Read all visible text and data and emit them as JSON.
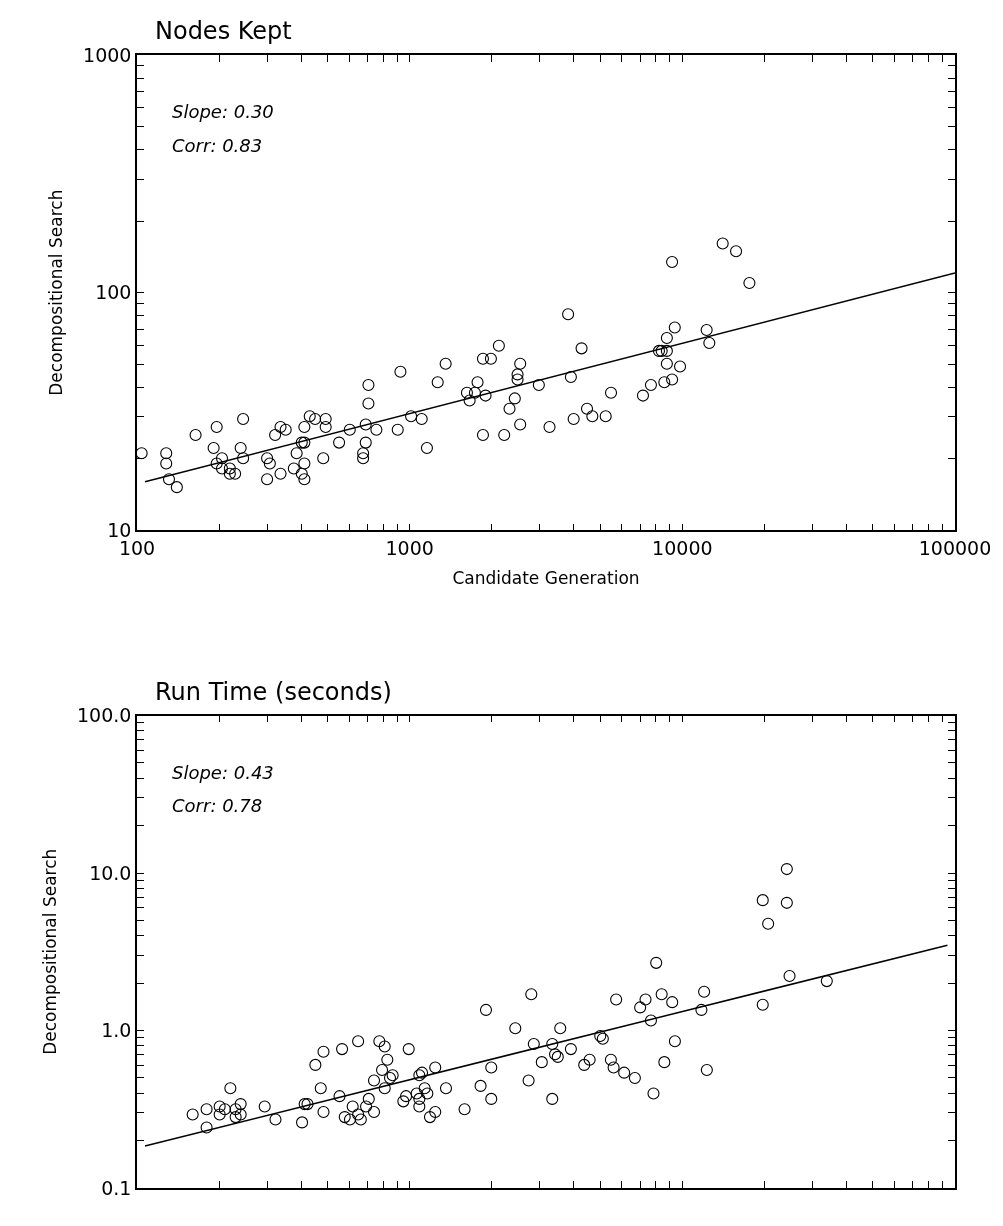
{
  "chart_data": [
    {
      "type": "scatter",
      "title": "Nodes Kept",
      "xlabel": "Candidate Generation",
      "ylabel": "Decompositional Search",
      "log": "xy",
      "marker": "circle",
      "annotations": [
        "Slope: 0.30",
        "Corr: 0.83"
      ],
      "xlim": [
        100,
        100000
      ],
      "ylim": [
        10,
        1000
      ],
      "xticks": [
        100,
        {
          "value": 200,
          "label": null
        },
        {
          "value": 300,
          "label": null
        },
        {
          "value": 400,
          "label": null
        },
        {
          "value": 500,
          "label": null
        },
        {
          "value": 600,
          "label": null
        },
        {
          "value": 700,
          "label": null
        },
        {
          "value": 800,
          "label": null
        },
        {
          "value": 900,
          "label": null
        },
        1000,
        {
          "value": 2000,
          "label": null
        },
        {
          "value": 3000,
          "label": null
        },
        {
          "value": 4000,
          "label": null
        },
        {
          "value": 5000,
          "label": null
        },
        {
          "value": 6000,
          "label": null
        },
        {
          "value": 7000,
          "label": null
        },
        {
          "value": 8000,
          "label": null
        },
        {
          "value": 9000,
          "label": null
        },
        10000,
        {
          "value": 20000,
          "label": null
        },
        {
          "value": 30000,
          "label": null
        },
        {
          "value": 40000,
          "label": null
        },
        {
          "value": 50000,
          "label": null
        },
        {
          "value": 60000,
          "label": null
        },
        {
          "value": 70000,
          "label": null
        },
        {
          "value": 80000,
          "label": null
        },
        {
          "value": 90000,
          "label": null
        },
        100000
      ],
      "yticks": [
        10,
        {
          "value": 20,
          "label": null
        },
        {
          "value": 30,
          "label": null
        },
        {
          "value": 40,
          "label": null
        },
        {
          "value": 50,
          "label": null
        },
        {
          "value": 60,
          "label": null
        },
        {
          "value": 70,
          "label": null
        },
        {
          "value": 80,
          "label": null
        },
        {
          "value": 90,
          "label": null
        },
        100,
        {
          "value": 200,
          "label": null
        },
        {
          "value": 300,
          "label": null
        },
        {
          "value": 400,
          "label": null
        },
        {
          "value": 500,
          "label": null
        },
        {
          "value": 600,
          "label": null
        },
        {
          "value": 700,
          "label": null
        },
        {
          "value": 800,
          "label": null
        },
        {
          "value": 900,
          "label": null
        },
        1000
      ],
      "series": [
        {
          "color": "#000000",
          "x": [
            104,
            128,
            128,
            131,
            140,
            164,
            196,
            191,
            196,
            205,
            205,
            219,
            219,
            229,
            240,
            245,
            245,
            300,
            307,
            300,
            321,
            336,
            351,
            336,
            376,
            385,
            402,
            411,
            411,
            430,
            450,
            411,
            402,
            411,
            482,
            492,
            492,
            551,
            603,
            675,
            675,
            690,
            690,
            706,
            706,
            755,
            904,
            925,
            1012,
            1107,
            1157,
            1267,
            1355,
            1622,
            1659,
            1735,
            1774,
            1857,
            1857,
            1898,
            1986,
            2124,
            2222,
            2324,
            2430,
            2487,
            2487,
            2543,
            2543,
            2977,
            3258,
            3811,
            3902,
            3994,
            4270,
            4471,
            4677,
            5235,
            5476,
            7172,
            7671,
            8209,
            8398,
            8776,
            8590,
            8776,
            8776,
            9170,
            9170,
            9381,
            9808,
            12280,
            12560,
            14060,
            15740,
            17620
          ],
          "values": [
            21.1,
            21.1,
            19.1,
            16.4,
            15.2,
            25.2,
            27.2,
            22.2,
            19.1,
            20.1,
            18.2,
            18.2,
            17.3,
            17.3,
            22.2,
            20.1,
            29.4,
            20.1,
            19.1,
            16.4,
            25.2,
            27.2,
            26.5,
            17.3,
            18.2,
            21.1,
            23.4,
            23.4,
            27.2,
            30.2,
            29.4,
            19.1,
            17.3,
            16.4,
            20.1,
            29.4,
            27.2,
            23.4,
            26.5,
            21.1,
            20.1,
            23.4,
            27.9,
            34.2,
            40.9,
            26.5,
            26.5,
            46.5,
            30.2,
            29.4,
            22.2,
            42.0,
            50.2,
            37.9,
            35.2,
            37.9,
            42.0,
            52.7,
            25.2,
            36.9,
            52.7,
            59.8,
            25.2,
            32.5,
            35.9,
            45.3,
            43.1,
            50.2,
            27.9,
            40.9,
            27.2,
            81.1,
            44.2,
            29.4,
            58.3,
            32.5,
            30.2,
            30.2,
            37.9,
            36.9,
            40.9,
            56.9,
            56.9,
            56.9,
            42.0,
            64.5,
            50.2,
            134.6,
            43.1,
            71.4,
            48.9,
            69.7,
            61.4,
            161.0,
            149.3,
            109.9
          ]
        },
        {
          "type": "line",
          "marker": "none",
          "color": "#000000",
          "x": [
            107,
            100000
          ],
          "values": [
            16.0,
            121
          ]
        }
      ]
    },
    {
      "type": "scatter",
      "title": "Run Time (seconds)",
      "ylabel": "Decompositional Search",
      "log": "xy",
      "marker": "circle",
      "tick_labels": "y",
      "annotations": [
        "Slope: 0.43",
        "Corr: 0.78"
      ],
      "xlim": [
        100,
        100000
      ],
      "ylim": [
        0.1,
        100
      ],
      "xticks": [
        100,
        {
          "value": 200,
          "label": null
        },
        {
          "value": 300,
          "label": null
        },
        {
          "value": 400,
          "label": null
        },
        {
          "value": 500,
          "label": null
        },
        {
          "value": 600,
          "label": null
        },
        {
          "value": 700,
          "label": null
        },
        {
          "value": 800,
          "label": null
        },
        {
          "value": 900,
          "label": null
        },
        1000,
        {
          "value": 2000,
          "label": null
        },
        {
          "value": 3000,
          "label": null
        },
        {
          "value": 4000,
          "label": null
        },
        {
          "value": 5000,
          "label": null
        },
        {
          "value": 6000,
          "label": null
        },
        {
          "value": 7000,
          "label": null
        },
        {
          "value": 8000,
          "label": null
        },
        {
          "value": 9000,
          "label": null
        },
        10000,
        {
          "value": 20000,
          "label": null
        },
        {
          "value": 30000,
          "label": null
        },
        {
          "value": 40000,
          "label": null
        },
        {
          "value": 50000,
          "label": null
        },
        {
          "value": 60000,
          "label": null
        },
        {
          "value": 70000,
          "label": null
        },
        {
          "value": 80000,
          "label": null
        },
        {
          "value": 90000,
          "label": null
        },
        100000
      ],
      "yticks": [
        0.1,
        {
          "value": 0.2,
          "label": null
        },
        {
          "value": 0.3,
          "label": null
        },
        {
          "value": 0.4,
          "label": null
        },
        {
          "value": 0.5,
          "label": null
        },
        {
          "value": 0.6,
          "label": null
        },
        {
          "value": 0.7,
          "label": null
        },
        {
          "value": 0.8,
          "label": null
        },
        {
          "value": 0.9,
          "label": null
        },
        {
          "value": 1,
          "label": "1.0"
        },
        {
          "value": 2,
          "label": null
        },
        {
          "value": 3,
          "label": null
        },
        {
          "value": 4,
          "label": null
        },
        {
          "value": 5,
          "label": null
        },
        {
          "value": 6,
          "label": null
        },
        {
          "value": 7,
          "label": null
        },
        {
          "value": 8,
          "label": null
        },
        {
          "value": 9,
          "label": null
        },
        {
          "value": 10,
          "label": "10.0"
        },
        {
          "value": 20,
          "label": null
        },
        {
          "value": 30,
          "label": null
        },
        {
          "value": 40,
          "label": null
        },
        {
          "value": 50,
          "label": null
        },
        {
          "value": 60,
          "label": null
        },
        {
          "value": 70,
          "label": null
        },
        {
          "value": 80,
          "label": null
        },
        {
          "value": 90,
          "label": null
        },
        {
          "value": 100,
          "label": "100.0"
        }
      ],
      "series": [
        {
          "color": "#000000",
          "x": [
            160,
            180,
            180,
            201,
            201,
            210,
            220,
            230,
            230,
            240,
            240,
            294,
            322,
            403,
            412,
            422,
            451,
            472,
            483,
            483,
            553,
            565,
            578,
            604,
            618,
            647,
            647,
            662,
            692,
            708,
            740,
            740,
            774,
            792,
            810,
            810,
            828,
            847,
            866,
            948,
            970,
            992,
            1061,
            1085,
            1085,
            1085,
            1110,
            1135,
            1161,
            1187,
            1241,
            1241,
            1359,
            1590,
            1820,
            1905,
            1992,
            1992,
            2440,
            2730,
            2793,
            2853,
            3052,
            3334,
            3334,
            3413,
            3493,
            3567,
            3902,
            4367,
            4571,
            5000,
            5110,
            5470,
            5597,
            5719,
            6119,
            6699,
            7004,
            7328,
            7671,
            7838,
            8019,
            8398,
            8590,
            9181,
            9392,
            11750,
            12020,
            12300,
            19720,
            19720,
            20640,
            24170,
            24170,
            24730,
            33870
          ],
          "values": [
            0.293,
            0.316,
            0.242,
            0.329,
            0.293,
            0.316,
            0.43,
            0.316,
            0.282,
            0.341,
            0.293,
            0.329,
            0.272,
            0.261,
            0.341,
            0.341,
            0.605,
            0.43,
            0.733,
            0.304,
            0.383,
            0.762,
            0.282,
            0.272,
            0.329,
            0.855,
            0.293,
            0.272,
            0.329,
            0.368,
            0.304,
            0.482,
            0.855,
            0.561,
            0.791,
            0.43,
            0.653,
            0.5,
            0.52,
            0.355,
            0.383,
            0.762,
            0.398,
            0.329,
            0.368,
            0.52,
            0.54,
            0.43,
            0.398,
            0.282,
            0.304,
            0.583,
            0.43,
            0.316,
            0.445,
            1.352,
            0.583,
            0.368,
            1.035,
            0.482,
            1.7,
            0.822,
            0.63,
            0.822,
            0.368,
            0.706,
            0.68,
            1.035,
            0.762,
            0.605,
            0.653,
            0.923,
            0.887,
            0.653,
            0.583,
            1.574,
            0.54,
            0.5,
            1.402,
            1.574,
            1.159,
            0.398,
            2.69,
            1.7,
            0.63,
            1.514,
            0.855,
            1.352,
            1.765,
            0.561,
            6.73,
            1.458,
            4.77,
            10.6,
            6.47,
            2.22,
            2.06
          ]
        },
        {
          "type": "line",
          "marker": "none",
          "color": "#000000",
          "x": [
            107,
            93800
          ],
          "values": [
            0.185,
            3.48
          ]
        }
      ]
    }
  ]
}
